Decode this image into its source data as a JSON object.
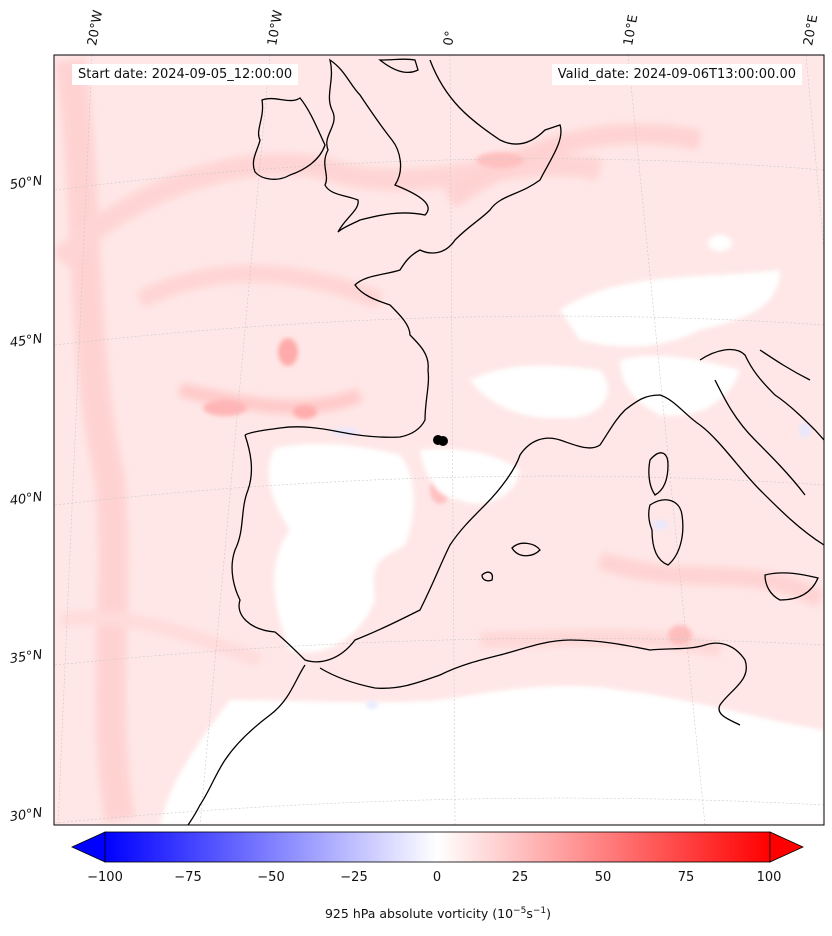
{
  "map": {
    "start_date_label": "Start date: 2024-09-05_12:00:00",
    "valid_date_label": "Valid_date: 2024-09-06T13:00:00.00",
    "lat_labels": [
      "50°N",
      "45°N",
      "40°N",
      "35°N",
      "30°N"
    ],
    "lon_labels": [
      "20°W",
      "10°W",
      "0°",
      "10°E",
      "20°E"
    ],
    "field": "925 hPa absolute vorticity",
    "colormap": "bwr",
    "marker": "black dot near 42°N 0°"
  },
  "colorbar": {
    "label_prefix": "925 hPa absolute vorticity (10",
    "label_exp1": "−5",
    "label_mid": "s",
    "label_exp2": "−1",
    "label_suffix": ")",
    "ticks": [
      "−100",
      "−75",
      "−50",
      "−25",
      "0",
      "25",
      "50",
      "75",
      "100"
    ],
    "min": -100,
    "max": 100,
    "colors": {
      "negative": "#0000ff",
      "zero": "#ffffff",
      "positive": "#ff0000"
    }
  }
}
